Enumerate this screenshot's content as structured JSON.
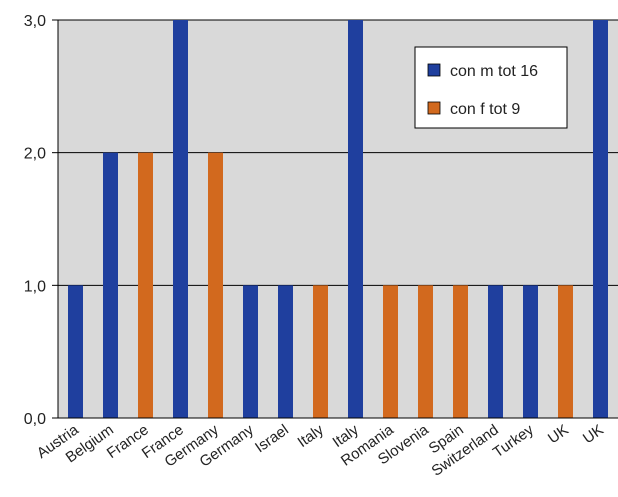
{
  "chart_data": {
    "type": "bar",
    "categories": [
      "Austria",
      "Belgium",
      "France",
      "France",
      "Germany",
      "Germany",
      "Israel",
      "Italy",
      "Italy",
      "Romania",
      "Slovenia",
      "Spain",
      "Switzerland",
      "Turkey",
      "UK",
      "UK"
    ],
    "values": [
      1,
      2,
      2,
      3,
      2,
      1,
      1,
      1,
      3,
      1,
      1,
      1,
      1,
      1,
      1,
      3
    ],
    "bar_series": [
      0,
      0,
      1,
      0,
      1,
      0,
      0,
      1,
      0,
      1,
      1,
      1,
      0,
      0,
      1,
      0
    ],
    "series": [
      {
        "name": "con m tot 16",
        "color": "#1f3f9e"
      },
      {
        "name": "con f tot 9",
        "color": "#d2691e"
      }
    ],
    "ylim": [
      0,
      3
    ],
    "yticks": [
      "0,0",
      "1,0",
      "2,0",
      "3,0"
    ],
    "grid": true,
    "plot_background": "#d9d9d9",
    "legend_position": "top-right",
    "title": "",
    "xlabel": "",
    "ylabel": ""
  }
}
